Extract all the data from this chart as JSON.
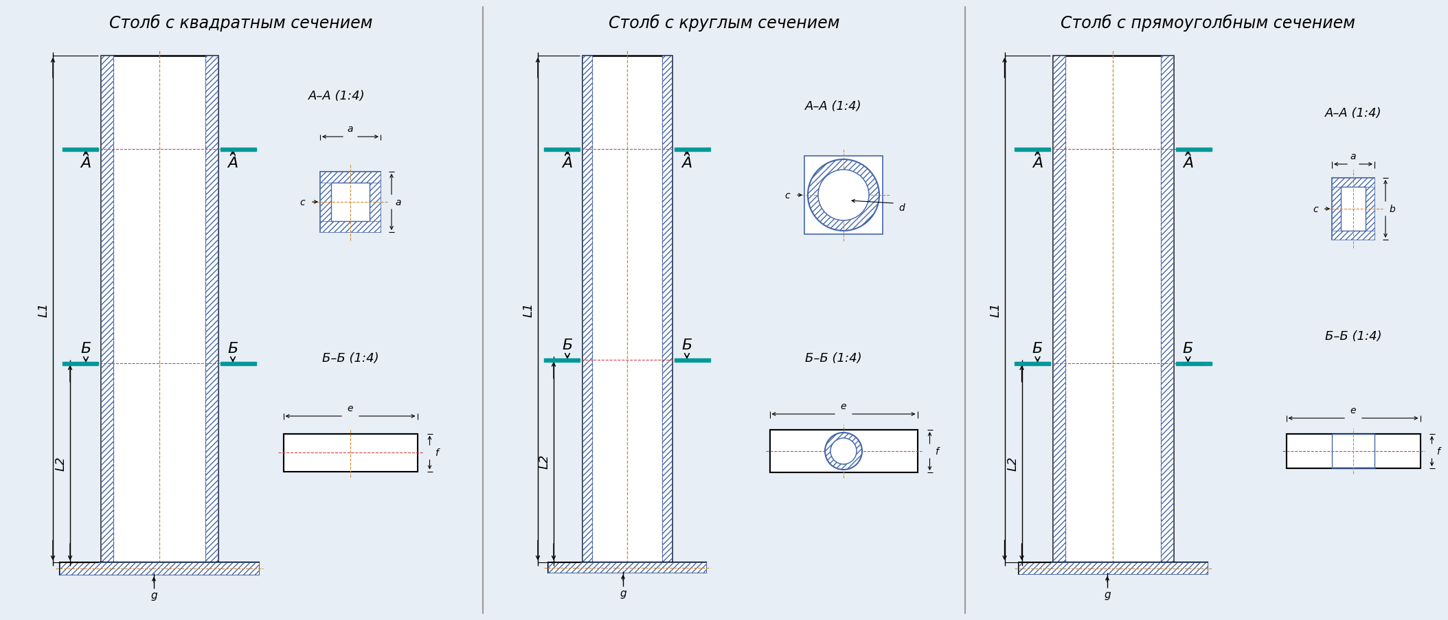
{
  "bg_color": "#e8eef5",
  "line_color": "#000000",
  "blue_color": "#4466aa",
  "red_color": "#cc4444",
  "orange_color": "#cc8833",
  "teal_color": "#009999",
  "titles": [
    "Столб с квадратным сечением",
    "Столб с круглым сечением",
    "Столб с прямоуголбным сечением"
  ],
  "aa_label": "А–А (1:4)",
  "bb_label": "Б–Б (1:4)",
  "A_letter": "А",
  "B_letter": "Б",
  "L1": "L1",
  "L2": "L2",
  "g": "g",
  "a": "a",
  "b": "b",
  "c": "c",
  "d": "d",
  "e": "e",
  "f": "f"
}
